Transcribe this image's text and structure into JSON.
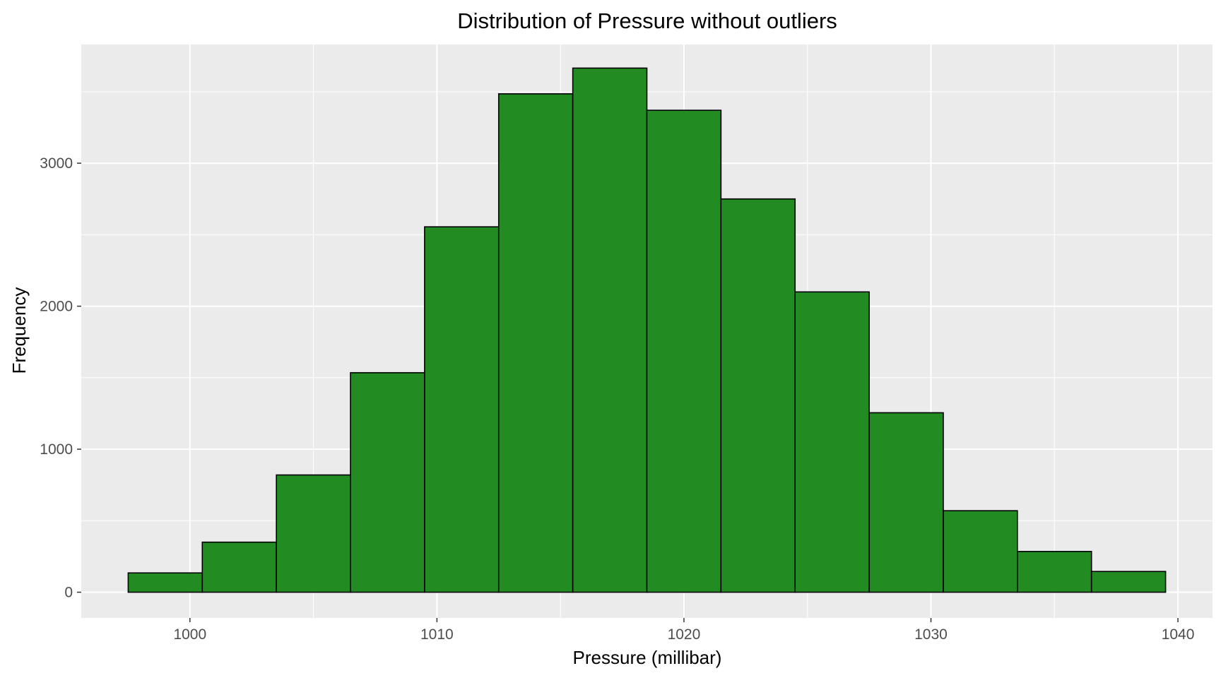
{
  "chart_data": {
    "type": "bar",
    "subtype": "histogram",
    "title": "Distribution of Pressure without outliers",
    "xlabel": "Pressure (millibar)",
    "ylabel": "Frequency",
    "xlim": [
      995.6,
      1041.4
    ],
    "ylim": [
      -180,
      3830
    ],
    "x_ticks": [
      1000,
      1010,
      1020,
      1030,
      1040
    ],
    "y_ticks": [
      0,
      1000,
      2000,
      3000
    ],
    "grid": true,
    "legend": "none",
    "bin_width": 3,
    "bins": [
      {
        "start": 997.5,
        "end": 1000.5,
        "count": 135
      },
      {
        "start": 1000.5,
        "end": 1003.5,
        "count": 350
      },
      {
        "start": 1003.5,
        "end": 1006.5,
        "count": 820
      },
      {
        "start": 1006.5,
        "end": 1009.5,
        "count": 1535
      },
      {
        "start": 1009.5,
        "end": 1012.5,
        "count": 2555
      },
      {
        "start": 1012.5,
        "end": 1015.5,
        "count": 3485
      },
      {
        "start": 1015.5,
        "end": 1018.5,
        "count": 3665
      },
      {
        "start": 1018.5,
        "end": 1021.5,
        "count": 3370
      },
      {
        "start": 1021.5,
        "end": 1024.5,
        "count": 2750
      },
      {
        "start": 1024.5,
        "end": 1027.5,
        "count": 2100
      },
      {
        "start": 1027.5,
        "end": 1030.5,
        "count": 1255
      },
      {
        "start": 1030.5,
        "end": 1033.5,
        "count": 570
      },
      {
        "start": 1033.5,
        "end": 1036.5,
        "count": 285
      },
      {
        "start": 1036.5,
        "end": 1039.5,
        "count": 145
      }
    ],
    "colors": {
      "bar_fill": "#228b22",
      "bar_stroke": "#000000",
      "panel_background": "#ebebeb",
      "grid": "#ffffff"
    }
  }
}
